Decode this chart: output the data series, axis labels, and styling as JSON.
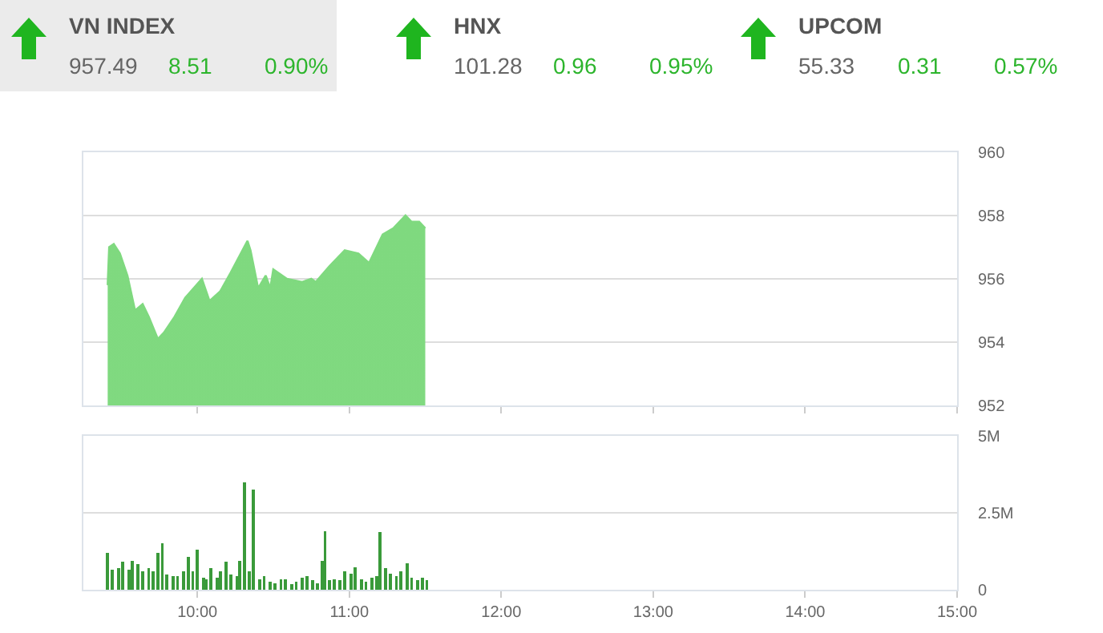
{
  "chart_data": [
    {
      "type": "other",
      "annotations": [
        "VN INDEX",
        "957.49",
        "8.51",
        "0.90%",
        "HNX",
        "101.28",
        "0.96",
        "0.95%",
        "UPCOM",
        "55.33",
        "0.31",
        "0.57%"
      ]
    },
    {
      "type": "area",
      "x": [
        9.41,
        9.42,
        9.45,
        9.49,
        9.54,
        9.59,
        9.64,
        9.68,
        9.74,
        9.78,
        9.85,
        9.92,
        10.03,
        10.08,
        10.15,
        10.22,
        10.33,
        10.35,
        10.4,
        10.45,
        10.48,
        10.5,
        10.59,
        10.69,
        10.75,
        10.78,
        10.87,
        10.97,
        11.06,
        11.13,
        11.22,
        11.29,
        11.37,
        11.41,
        11.46,
        11.5
      ],
      "series": [
        {
          "color": "#7fd97f",
          "values": [
            955.8,
            957.0,
            957.1,
            956.8,
            956.1,
            955.0,
            955.2,
            954.8,
            954.1,
            954.3,
            954.8,
            955.4,
            956.0,
            955.3,
            955.6,
            956.2,
            957.2,
            956.9,
            955.7,
            956.1,
            955.7,
            956.3,
            956.0,
            955.9,
            956.0,
            955.9,
            956.4,
            956.9,
            956.8,
            956.5,
            957.4,
            957.6,
            958.0,
            957.8,
            957.8,
            957.6
          ]
        }
      ],
      "xlim": [
        9.25,
        15
      ],
      "xticks": [
        {
          "value": 10,
          "label": null
        },
        {
          "value": 11,
          "label": null
        },
        {
          "value": 12,
          "label": null
        },
        {
          "value": 13,
          "label": null
        },
        {
          "value": 14,
          "label": null
        },
        {
          "value": 15,
          "label": null
        }
      ],
      "ylim": [
        952,
        960
      ],
      "yticks": [
        952,
        954,
        956,
        958,
        960
      ],
      "grid": "y",
      "tick_labels": "y",
      "legend": false
    },
    {
      "type": "bar",
      "x": [
        9.41,
        9.44,
        9.48,
        9.51,
        9.55,
        9.57,
        9.61,
        9.64,
        9.68,
        9.71,
        9.74,
        9.77,
        9.8,
        9.84,
        9.87,
        9.91,
        9.94,
        9.97,
        10.0,
        10.04,
        10.06,
        10.09,
        10.13,
        10.15,
        10.19,
        10.22,
        10.26,
        10.28,
        10.31,
        10.34,
        10.37,
        10.41,
        10.44,
        10.48,
        10.51,
        10.55,
        10.58,
        10.62,
        10.65,
        10.69,
        10.72,
        10.76,
        10.79,
        10.82,
        10.84,
        10.87,
        10.9,
        10.94,
        10.97,
        11.01,
        11.04,
        11.08,
        11.11,
        11.15,
        11.18,
        11.2,
        11.24,
        11.27,
        11.31,
        11.34,
        11.38,
        11.41,
        11.45,
        11.48,
        11.51
      ],
      "series": [
        {
          "color": "#3a9a3a",
          "values": [
            1200000,
            660000,
            700000,
            900000,
            660000,
            950000,
            830000,
            600000,
            700000,
            600000,
            1200000,
            1500000,
            500000,
            430000,
            430000,
            600000,
            1080000,
            600000,
            1300000,
            380000,
            350000,
            700000,
            380000,
            600000,
            900000,
            490000,
            430000,
            950000,
            3500000,
            600000,
            3260000,
            350000,
            430000,
            260000,
            200000,
            350000,
            350000,
            170000,
            260000,
            380000,
            430000,
            310000,
            200000,
            950000,
            1900000,
            310000,
            350000,
            310000,
            600000,
            520000,
            730000,
            350000,
            260000,
            380000,
            430000,
            1870000,
            700000,
            520000,
            430000,
            600000,
            870000,
            380000,
            310000,
            380000,
            310000
          ]
        }
      ],
      "xlim": [
        9.25,
        15
      ],
      "xticks": [
        {
          "value": 10,
          "label": "10:00"
        },
        {
          "value": 11,
          "label": "11:00"
        },
        {
          "value": 12,
          "label": "12:00"
        },
        {
          "value": 13,
          "label": "13:00"
        },
        {
          "value": 14,
          "label": "14:00"
        },
        {
          "value": 15,
          "label": "15:00"
        }
      ],
      "ylim": [
        0,
        5000000
      ],
      "yticks": [
        0,
        {
          "value": 2500000,
          "label": "2.5M"
        },
        {
          "value": 5000000,
          "label": "5M"
        }
      ],
      "grid": "y",
      "legend": false
    }
  ]
}
